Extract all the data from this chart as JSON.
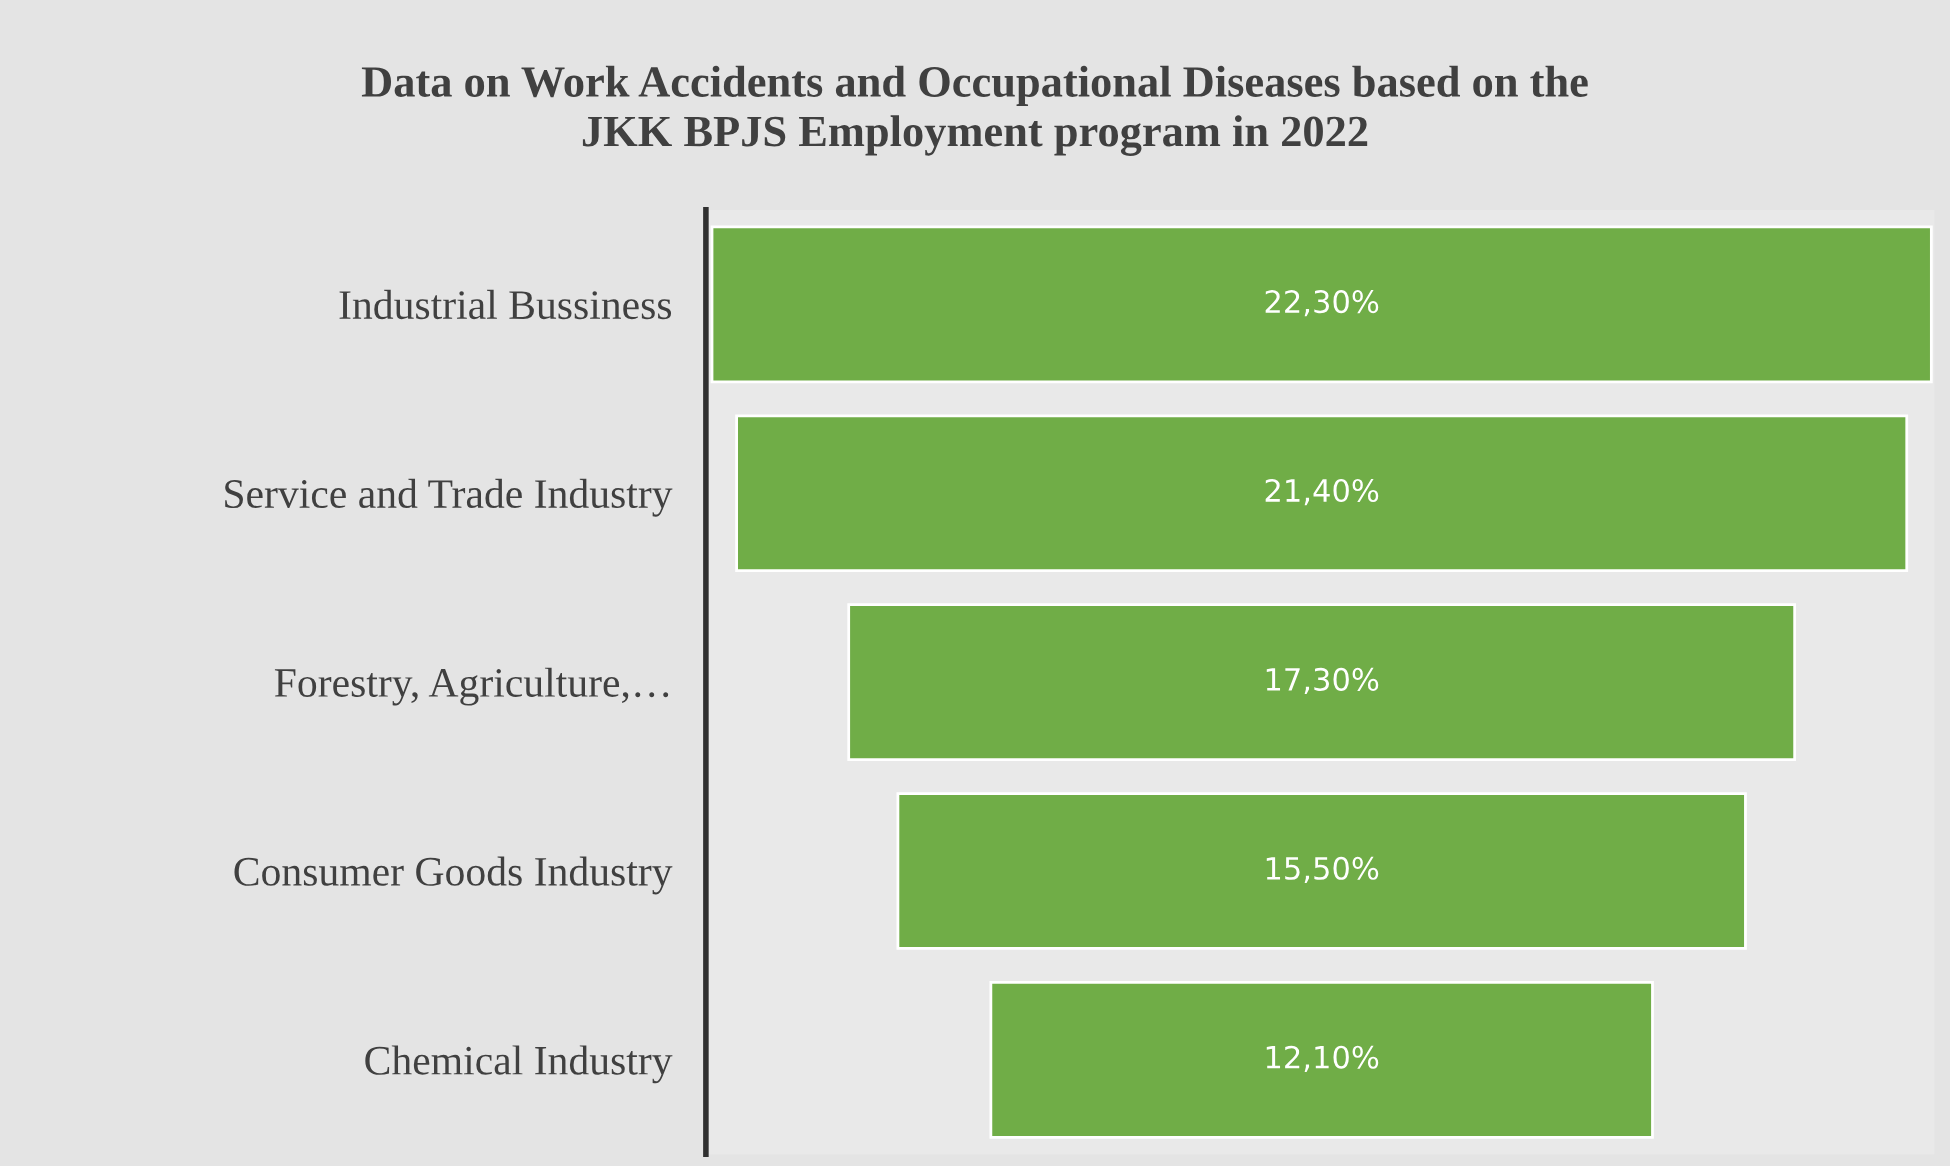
{
  "chart_data": {
    "type": "other",
    "title": "Data on Work Accidents and Occupational Diseases based on the\nJKK BPJS Employment program in 2022",
    "categories": [
      "Industrial Bussiness",
      "Service and Trade Industry",
      "Forestry, Agriculture,…",
      "Consumer Goods Industry",
      "Chemical Industry"
    ],
    "values": [
      22.3,
      21.4,
      17.3,
      15.5,
      12.1
    ],
    "value_labels": [
      "22,30%",
      "21,40%",
      "17,30%",
      "15,50%",
      "12,10%"
    ],
    "color": "#70ad47"
  }
}
